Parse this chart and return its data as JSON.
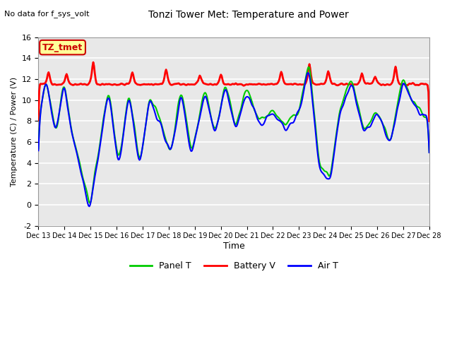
{
  "title": "Tonzi Tower Met: Temperature and Power",
  "subtitle": "No data for f_sys_volt",
  "ylabel": "Temperature (C) / Power (V)",
  "xlabel": "Time",
  "ylim": [
    -2,
    16
  ],
  "yticks": [
    -2,
    0,
    2,
    4,
    6,
    8,
    10,
    12,
    14,
    16
  ],
  "xtick_positions": [
    0,
    1,
    2,
    3,
    4,
    5,
    6,
    7,
    8,
    9,
    10,
    11,
    12,
    13,
    14,
    15
  ],
  "xtick_labels": [
    "Dec 13",
    "Dec 14",
    "Dec 15",
    "Dec 16",
    "Dec 17",
    "Dec 18",
    "Dec 19",
    "Dec 20",
    "Dec 21",
    "Dec 22",
    "Dec 23",
    "Dec 24",
    "Dec 25",
    "Dec 26",
    "Dec 27",
    "Dec 28"
  ],
  "legend_labels": [
    "Panel T",
    "Battery V",
    "Air T"
  ],
  "legend_colors": [
    "#00cc00",
    "#ff0000",
    "#0000ff"
  ],
  "tag_label": "TZ_tmet",
  "tag_bg_color": "#ffff99",
  "tag_border_color": "#cc0000",
  "tag_text_color": "#cc0000",
  "bg_color": "#ffffff",
  "plot_bg_color": "#e8e8e8",
  "grid_color": "#ffffff",
  "line_colors": {
    "panel": "#00cc00",
    "battery": "#ff0000",
    "air": "#0000ff"
  },
  "line_widths": {
    "panel": 1.5,
    "battery": 2.0,
    "air": 1.5
  },
  "num_points": 500
}
